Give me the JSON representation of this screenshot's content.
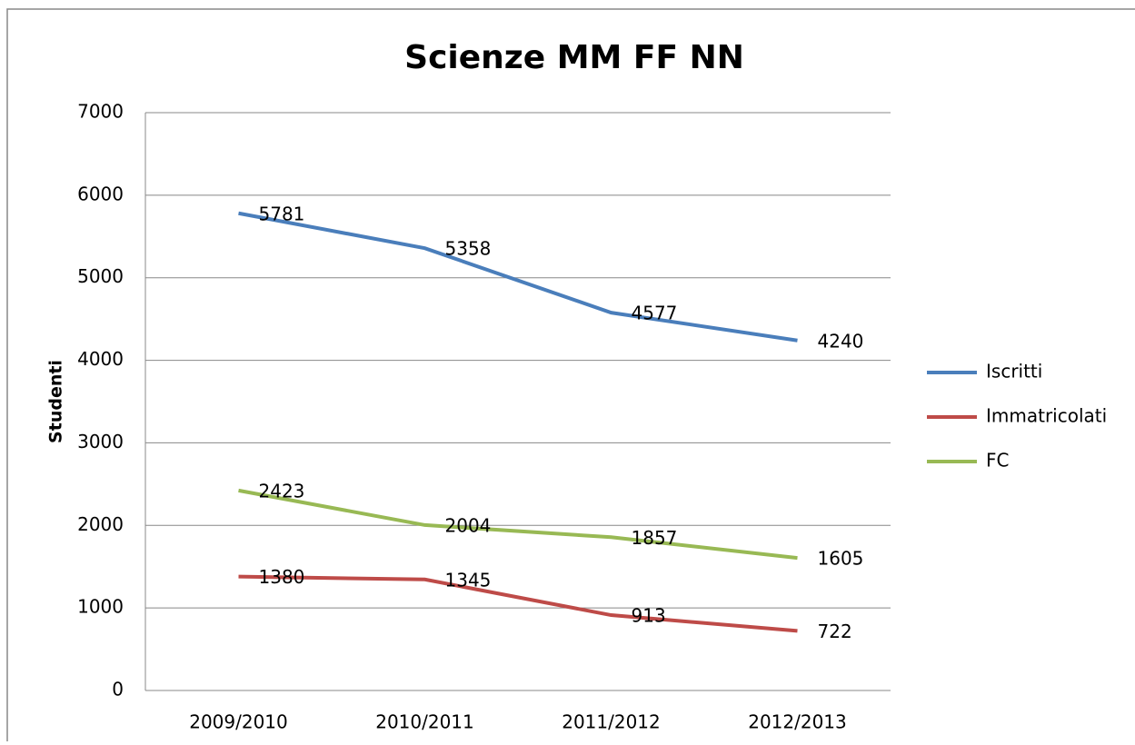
{
  "chart_data": {
    "type": "line",
    "title": "Scienze MM FF NN",
    "y_label": "Studenti",
    "categories": [
      "2009/2010",
      "2010/2011",
      "2011/2012",
      "2012/2013"
    ],
    "series": [
      {
        "name": "Iscritti",
        "color": "#4a7ebb",
        "values": [
          5781,
          5358,
          4577,
          4240
        ]
      },
      {
        "name": "Immatricolati",
        "color": "#be4b48",
        "values": [
          1380,
          1345,
          913,
          722
        ]
      },
      {
        "name": "FC",
        "color": "#98b954",
        "values": [
          2423,
          2004,
          1857,
          1605
        ]
      }
    ],
    "ylim": [
      0,
      7000
    ],
    "yticks": [
      0,
      1000,
      2000,
      3000,
      4000,
      5000,
      6000,
      7000
    ],
    "grid": true,
    "legend": "right",
    "data_labels": true
  }
}
